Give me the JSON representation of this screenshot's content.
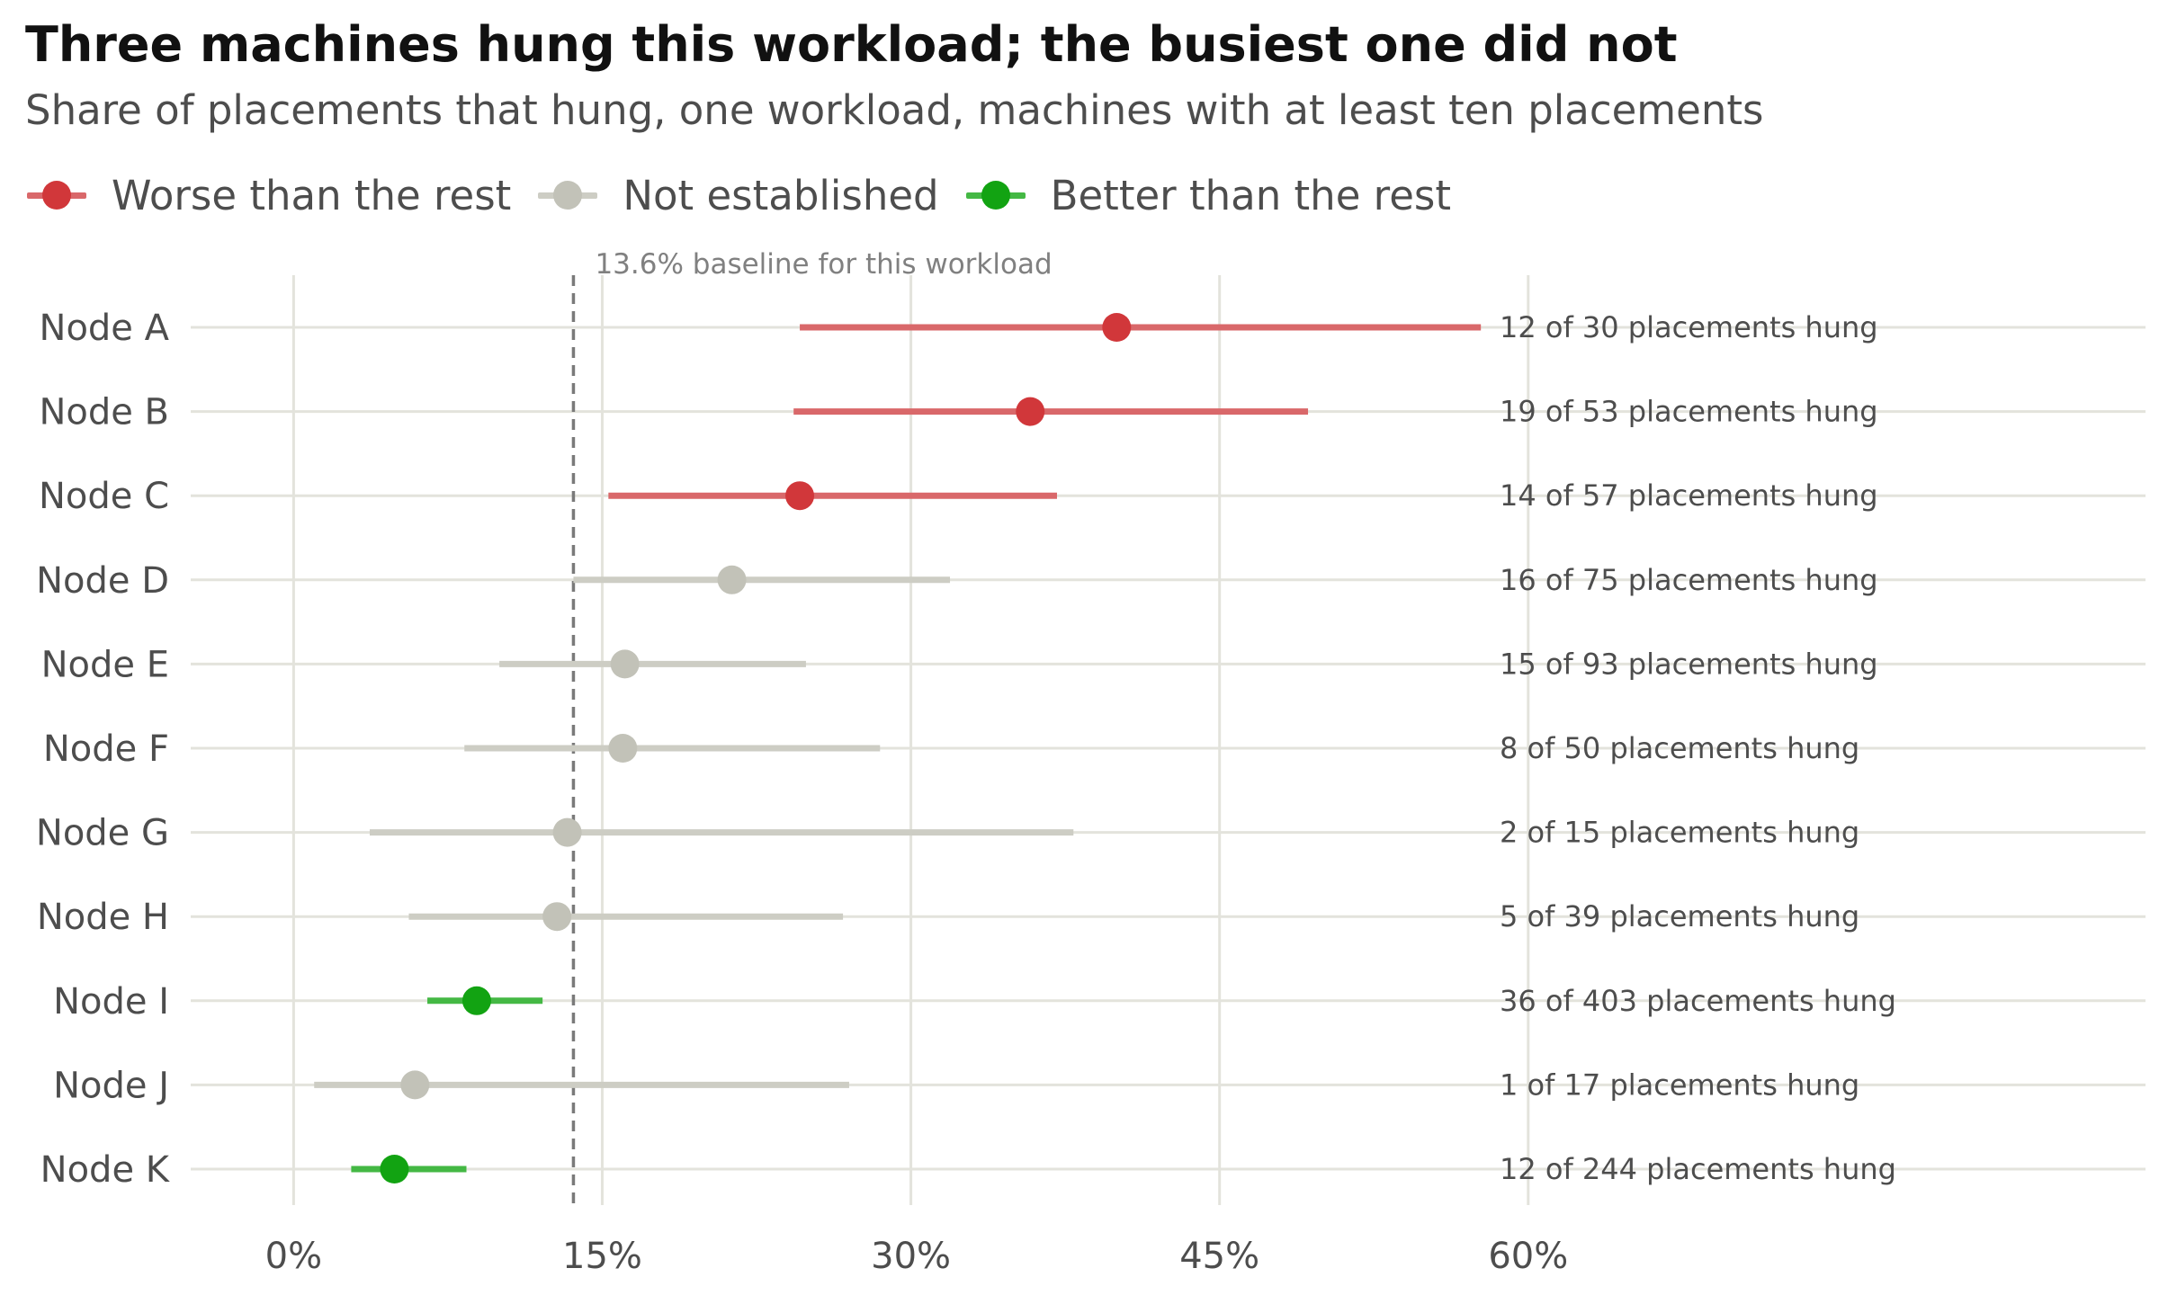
{
  "title": "Three machines hung this workload; the busiest one did not",
  "subtitle": "Share of placements that hung, one workload, machines with at least ten placements",
  "legend": [
    {
      "label": "Worse than the rest",
      "color": "#d1373a",
      "line_color": "#d9686a"
    },
    {
      "label": "Not established",
      "color": "#c2c2b8",
      "line_color": "#cdcdc4"
    },
    {
      "label": "Better than the rest",
      "color": "#12a312",
      "line_color": "#44b844"
    }
  ],
  "chart_data": {
    "type": "scatter",
    "title": "Three machines hung this workload; the busiest one did not",
    "subtitle": "Share of placements that hung, one workload, machines with at least ten placements",
    "x_axis": {
      "min": -5,
      "max": 90,
      "ticks": [
        0,
        15,
        30,
        45,
        60
      ],
      "tick_labels": [
        "0%",
        "15%",
        "30%",
        "45%",
        "60%"
      ],
      "grid": true
    },
    "baseline": {
      "value": 13.6,
      "label": "13.6% baseline for this workload"
    },
    "legend_position": "top-left",
    "rows": [
      {
        "node": "Node A",
        "value": 40.0,
        "low": 24.6,
        "high": 57.7,
        "group": 0,
        "annotation": "12 of 30 placements hung"
      },
      {
        "node": "Node B",
        "value": 35.8,
        "low": 24.3,
        "high": 49.3,
        "group": 0,
        "annotation": "19 of 53 placements hung"
      },
      {
        "node": "Node C",
        "value": 24.6,
        "low": 15.3,
        "high": 37.1,
        "group": 0,
        "annotation": "14 of 57 placements hung"
      },
      {
        "node": "Node D",
        "value": 21.3,
        "low": 13.6,
        "high": 31.9,
        "group": 1,
        "annotation": "16 of 75 placements hung"
      },
      {
        "node": "Node E",
        "value": 16.1,
        "low": 10.0,
        "high": 24.9,
        "group": 1,
        "annotation": "15 of 93 placements hung"
      },
      {
        "node": "Node F",
        "value": 16.0,
        "low": 8.3,
        "high": 28.5,
        "group": 1,
        "annotation": "8 of 50 placements hung"
      },
      {
        "node": "Node G",
        "value": 13.3,
        "low": 3.7,
        "high": 37.9,
        "group": 1,
        "annotation": "2 of 15 placements hung"
      },
      {
        "node": "Node H",
        "value": 12.8,
        "low": 5.6,
        "high": 26.7,
        "group": 1,
        "annotation": "5 of 39 placements hung"
      },
      {
        "node": "Node I",
        "value": 8.9,
        "low": 6.5,
        "high": 12.1,
        "group": 2,
        "annotation": "36 of 403 placements hung"
      },
      {
        "node": "Node J",
        "value": 5.9,
        "low": 1.0,
        "high": 27.0,
        "group": 1,
        "annotation": "1 of 17 placements hung"
      },
      {
        "node": "Node K",
        "value": 4.9,
        "low": 2.8,
        "high": 8.4,
        "group": 2,
        "annotation": "12 of 244 placements hung"
      }
    ]
  }
}
